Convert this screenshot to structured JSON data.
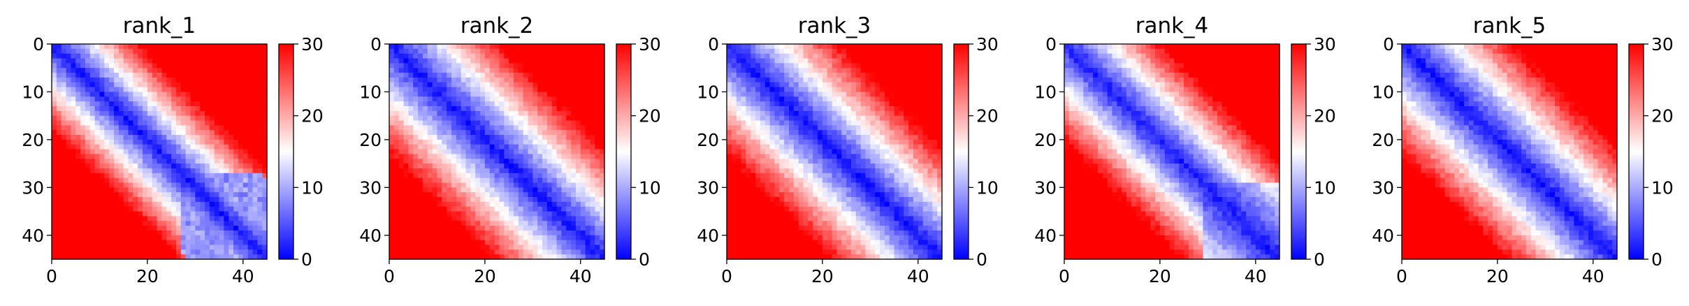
{
  "chart_data": [
    {
      "type": "heatmap",
      "title": "rank_1",
      "size": 45,
      "colormap": "bwr",
      "vmin": 0,
      "vmax": 30,
      "xlim": [
        0,
        45
      ],
      "ylim": [
        45,
        0
      ],
      "xticks": [
        0,
        20,
        40
      ],
      "yticks": [
        0,
        10,
        20,
        30,
        40
      ],
      "colorbar_ticks": [
        0,
        10,
        20,
        30
      ],
      "structure": "pairwise distance matrix; blue diagonal band, red far off-diagonal; blue block near rows/cols 28-45"
    },
    {
      "type": "heatmap",
      "title": "rank_2",
      "size": 45,
      "colormap": "bwr",
      "vmin": 0,
      "vmax": 30,
      "xlim": [
        0,
        45
      ],
      "ylim": [
        45,
        0
      ],
      "xticks": [
        0,
        20,
        40
      ],
      "yticks": [
        0,
        10,
        20,
        30,
        40
      ],
      "colorbar_ticks": [
        0,
        10,
        20,
        30
      ],
      "structure": "pairwise distance matrix; narrow blue diagonal band, red off-diagonal"
    },
    {
      "type": "heatmap",
      "title": "rank_3",
      "size": 45,
      "colormap": "bwr",
      "vmin": 0,
      "vmax": 30,
      "xlim": [
        0,
        45
      ],
      "ylim": [
        45,
        0
      ],
      "xticks": [
        0,
        20,
        40
      ],
      "yticks": [
        0,
        10,
        20,
        30,
        40
      ],
      "colorbar_ticks": [
        0,
        10,
        20,
        30
      ],
      "structure": "pairwise distance matrix; narrow blue diagonal band, red off-diagonal"
    },
    {
      "type": "heatmap",
      "title": "rank_4",
      "size": 45,
      "colormap": "bwr",
      "vmin": 0,
      "vmax": 30,
      "xlim": [
        0,
        45
      ],
      "ylim": [
        45,
        0
      ],
      "xticks": [
        0,
        20,
        40
      ],
      "yticks": [
        0,
        10,
        20,
        30,
        40
      ],
      "colorbar_ticks": [
        0,
        10,
        20,
        30
      ],
      "structure": "pairwise distance matrix; blue diagonal band widening near rows/cols 30-45, red off-diagonal"
    },
    {
      "type": "heatmap",
      "title": "rank_5",
      "size": 45,
      "colormap": "bwr",
      "vmin": 0,
      "vmax": 30,
      "xlim": [
        0,
        45
      ],
      "ylim": [
        45,
        0
      ],
      "xticks": [
        0,
        20,
        40
      ],
      "yticks": [
        0,
        10,
        20,
        30,
        40
      ],
      "colorbar_ticks": [
        0,
        10,
        20,
        30
      ],
      "structure": "pairwise distance matrix; narrow blue diagonal band, red off-diagonal"
    }
  ]
}
